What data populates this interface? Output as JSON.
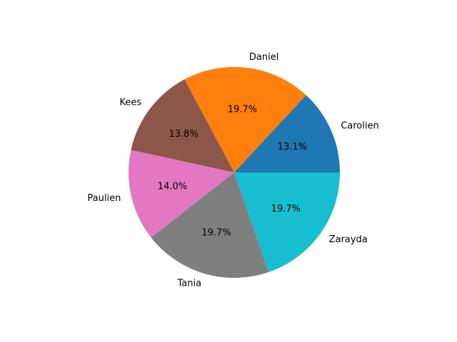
{
  "chart_data": {
    "type": "pie",
    "categories": [
      "Carolien",
      "Daniel",
      "Kees",
      "Paulien",
      "Tania",
      "Zarayda"
    ],
    "values": [
      13.1,
      19.7,
      13.8,
      14.0,
      19.7,
      19.7
    ],
    "value_labels": [
      "13.1%",
      "19.7%",
      "13.8%",
      "14.0%",
      "19.7%",
      "19.7%"
    ],
    "colors": [
      "#1f77b4",
      "#ff7f0e",
      "#8c564b",
      "#e377c2",
      "#7f7f7f",
      "#17becf"
    ],
    "start_angle_deg": 0,
    "direction": "counterclockwise",
    "title": "",
    "legend": "none"
  }
}
